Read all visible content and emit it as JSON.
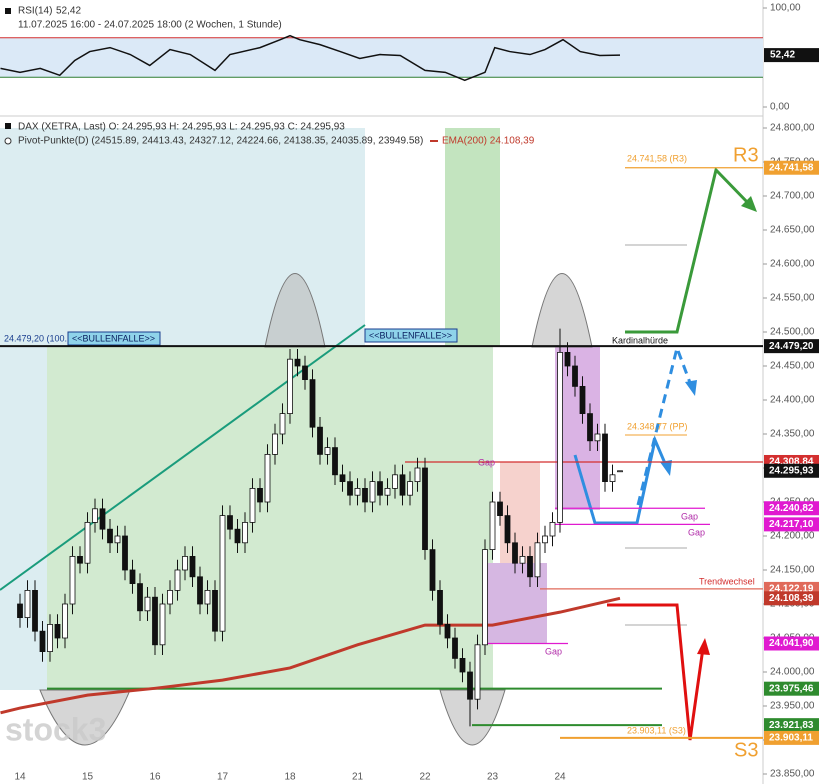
{
  "chart_data": [
    {
      "type": "line",
      "title": "RSI(14)",
      "subtitle": "11.07.2025 16:00 - 24.07.2025 18:00 (2 Wochen, 1 Stunde)",
      "ylim": [
        0,
        100
      ],
      "yticks": [
        {
          "value": 100,
          "label": "100,00"
        },
        {
          "value": 0,
          "label": "0,00"
        }
      ],
      "levels": [
        {
          "value": 70,
          "color": "#d32f2f"
        },
        {
          "value": 30,
          "color": "#2e7d32"
        }
      ],
      "band_color": "#dbe9f7",
      "series": [
        {
          "color": "#111111",
          "x": [
            -2.6,
            0,
            2.7,
            5.3,
            7.3,
            9.3,
            12,
            14.7,
            17.3,
            20,
            22.7,
            26,
            28,
            32,
            34.7,
            36,
            37.3,
            40,
            42.7,
            45.3,
            48,
            50.7,
            54,
            56.7,
            59.3,
            62,
            63.3,
            65.3,
            68,
            70,
            72.4,
            74.7,
            77.3,
            80
          ],
          "values": [
            39,
            35,
            39,
            32,
            47,
            56,
            60,
            53,
            42,
            58,
            53,
            37,
            53,
            60,
            68,
            72,
            68,
            63,
            56,
            49,
            53,
            52,
            37,
            35,
            27,
            35,
            60,
            56,
            53,
            58,
            68,
            56,
            52,
            52.42
          ],
          "value_labels": [
            null,
            null,
            null,
            null,
            null,
            null,
            null,
            null,
            null,
            null,
            null,
            null,
            null,
            null,
            null,
            null,
            null,
            null,
            null,
            null,
            null,
            null,
            null,
            null,
            null,
            null,
            null,
            null,
            null,
            null,
            null,
            null,
            null,
            "52,42"
          ]
        }
      ]
    },
    {
      "type": "candlestick",
      "title": "DAX (XETRA, Last) O: 24.295,93 H: 24.295,93 L: 24.295,93 C: 24.295,93",
      "legend": [
        "Pivot-Punkte(D) (24515.89, 24413.43, 24327.12, 24224.66, 24138.35, 24035.89, 23949.58)",
        "EMA(200) 24.108,39"
      ],
      "up_color": "#ffffff",
      "down_color": "#111111",
      "edge_color": "#111111",
      "categories": [
        "14",
        null,
        null,
        null,
        null,
        null,
        null,
        null,
        null,
        "15",
        null,
        null,
        null,
        null,
        null,
        null,
        null,
        null,
        "16",
        null,
        null,
        null,
        null,
        null,
        null,
        null,
        null,
        "17",
        null,
        null,
        null,
        null,
        null,
        null,
        null,
        null,
        "18",
        null,
        null,
        null,
        null,
        null,
        null,
        null,
        null,
        "21",
        null,
        null,
        null,
        null,
        null,
        null,
        null,
        null,
        "22",
        null,
        null,
        null,
        null,
        null,
        null,
        null,
        null,
        "23",
        null,
        null,
        null,
        null,
        null,
        null,
        null,
        null,
        "24",
        null,
        null,
        null,
        null,
        null,
        null,
        null,
        null
      ],
      "open": [
        24100,
        24080,
        24120,
        24060,
        24030,
        24070,
        24050,
        24100,
        24170,
        24160,
        24220,
        24240,
        24210,
        24190,
        24200,
        24150,
        24130,
        24090,
        24110,
        24040,
        24100,
        24120,
        24150,
        24170,
        24140,
        24100,
        24120,
        24060,
        24230,
        24210,
        24190,
        24220,
        24270,
        24250,
        24320,
        24350,
        24380,
        24460,
        24450,
        24430,
        24360,
        24320,
        24330,
        24290,
        24280,
        24260,
        24270,
        24250,
        24280,
        24260,
        24270,
        24290,
        24260,
        24280,
        24300,
        24180,
        24120,
        24070,
        24050,
        24020,
        24000,
        23960,
        24040,
        24180,
        24250,
        24230,
        24190,
        24160,
        24170,
        24140,
        24190,
        24200,
        24220,
        24470,
        24450,
        24420,
        24380,
        24340,
        24350,
        24280,
        24295.93
      ],
      "high": [
        24115,
        24135,
        24135,
        24075,
        24085,
        24085,
        24115,
        24185,
        24185,
        24235,
        24255,
        24255,
        24225,
        24215,
        24215,
        24165,
        24145,
        24125,
        24125,
        24115,
        24135,
        24165,
        24185,
        24185,
        24155,
        24135,
        24135,
        24245,
        24245,
        24225,
        24235,
        24285,
        24285,
        24335,
        24365,
        24395,
        24475,
        24475,
        24465,
        24445,
        24375,
        24345,
        24345,
        24305,
        24295,
        24285,
        24285,
        24295,
        24295,
        24285,
        24305,
        24305,
        24295,
        24315,
        24315,
        24195,
        24135,
        24085,
        24065,
        24035,
        24015,
        24055,
        24195,
        24265,
        24265,
        24245,
        24205,
        24185,
        24185,
        24205,
        24215,
        24235,
        24505,
        24485,
        24465,
        24435,
        24395,
        24365,
        24365,
        24305,
        24295.93
      ],
      "low": [
        24065,
        24065,
        24045,
        24015,
        24015,
        24035,
        24035,
        24085,
        24145,
        24145,
        24205,
        24195,
        24175,
        24175,
        24135,
        24115,
        24075,
        24075,
        24025,
        24025,
        24085,
        24105,
        24135,
        24125,
        24085,
        24085,
        24045,
        24045,
        24195,
        24175,
        24175,
        24205,
        24235,
        24235,
        24305,
        24335,
        24365,
        24435,
        24415,
        24345,
        24305,
        24305,
        24275,
        24265,
        24245,
        24245,
        24235,
        24235,
        24245,
        24245,
        24255,
        24245,
        24245,
        24265,
        24165,
        24105,
        24055,
        24035,
        24005,
        23985,
        23920,
        23945,
        24025,
        24165,
        24215,
        24175,
        24145,
        24145,
        24125,
        24125,
        24175,
        24185,
        24205,
        24435,
        24405,
        24365,
        24325,
        24325,
        24265,
        24265,
        24295.93
      ],
      "close": [
        24080,
        24120,
        24060,
        24030,
        24070,
        24050,
        24100,
        24170,
        24160,
        24220,
        24240,
        24210,
        24190,
        24200,
        24150,
        24130,
        24090,
        24110,
        24040,
        24100,
        24120,
        24150,
        24170,
        24140,
        24100,
        24120,
        24060,
        24230,
        24210,
        24190,
        24220,
        24270,
        24250,
        24320,
        24350,
        24380,
        24460,
        24450,
        24430,
        24360,
        24320,
        24330,
        24290,
        24280,
        24260,
        24270,
        24250,
        24280,
        24260,
        24270,
        24290,
        24260,
        24280,
        24300,
        24180,
        24120,
        24070,
        24050,
        24020,
        24000,
        23960,
        24040,
        24180,
        24250,
        24230,
        24190,
        24160,
        24170,
        24140,
        24190,
        24200,
        24220,
        24470,
        24450,
        24420,
        24380,
        24340,
        24350,
        24280,
        24290,
        24295.93
      ],
      "ema": {
        "name": "EMA(200)",
        "color": "#c0392b",
        "x": [
          -2.6,
          0,
          9,
          18,
          27,
          36,
          45,
          54,
          63,
          72,
          80
        ],
        "values": [
          23940,
          23947,
          23966,
          23976,
          23988,
          24006,
          24040,
          24069,
          24069,
          24088,
          24108.39
        ]
      },
      "ylim": [
        23850,
        24800
      ],
      "yticks": [
        {
          "value": 24800,
          "label": "24.800,00"
        },
        {
          "value": 24750,
          "label": "24.750,00"
        },
        {
          "value": 24700,
          "label": "24.700,00"
        },
        {
          "value": 24650,
          "label": "24.650,00"
        },
        {
          "value": 24600,
          "label": "24.600,00"
        },
        {
          "value": 24550,
          "label": "24.550,00"
        },
        {
          "value": 24500,
          "label": "24.500,00"
        },
        {
          "value": 24450,
          "label": "24.450,00"
        },
        {
          "value": 24400,
          "label": "24.400,00"
        },
        {
          "value": 24350,
          "label": "24.350,00"
        },
        {
          "value": 24300,
          "label": "24.300,00"
        },
        {
          "value": 24250,
          "label": "24.250,00"
        },
        {
          "value": 24200,
          "label": "24.200,00"
        },
        {
          "value": 24150,
          "label": "24.150,00"
        },
        {
          "value": 24100,
          "label": "24.100,00"
        },
        {
          "value": 24050,
          "label": "24.050,00"
        },
        {
          "value": 24000,
          "label": "24.000,00"
        },
        {
          "value": 23950,
          "label": "23.950,00"
        },
        {
          "value": 23900,
          "label": "23.900,00"
        },
        {
          "value": 23850,
          "label": "23.850,00"
        }
      ],
      "levels": [
        {
          "value": 24741.58,
          "label": "24.741,58",
          "color": "#f0a030"
        },
        {
          "value": 24479.2,
          "label": "24.479,20",
          "color": "#111111"
        },
        {
          "value": 24308.84,
          "label": "24.308,84",
          "color": "#d32f2f"
        },
        {
          "value": 24295.93,
          "label": "24.295,93",
          "color": "#111111"
        },
        {
          "value": 24240.82,
          "label": "24.240,82",
          "color": "#e01ad0"
        },
        {
          "value": 24217.1,
          "label": "24.217,10",
          "color": "#e01ad0"
        },
        {
          "value": 24122.19,
          "label": "24.122,19",
          "color": "#e06a5a"
        },
        {
          "value": 24108.39,
          "label": "24.108,39",
          "color": "#c0392b"
        },
        {
          "value": 24041.9,
          "label": "24.041,90",
          "color": "#e01ad0"
        },
        {
          "value": 23975.46,
          "label": "23.975,46",
          "color": "#2e8b2e"
        },
        {
          "value": 23921.83,
          "label": "23.921,83",
          "color": "#2e8b2e"
        },
        {
          "value": 23903.11,
          "label": "23.903,11",
          "color": "#f0a030"
        }
      ],
      "annotations": [
        "24.479,20 (100.",
        "<<BULLENFALLE>>",
        "<<BULLENFALLE>>",
        "24.741,58 (R3)",
        "R3",
        "Kardinalhürde",
        "24.348,77 (PP)",
        "Gap",
        "Gap",
        "Gap",
        "Gap",
        "Trendwechsel",
        "23.903,11 (S3)",
        "S3",
        "stock3"
      ]
    }
  ]
}
